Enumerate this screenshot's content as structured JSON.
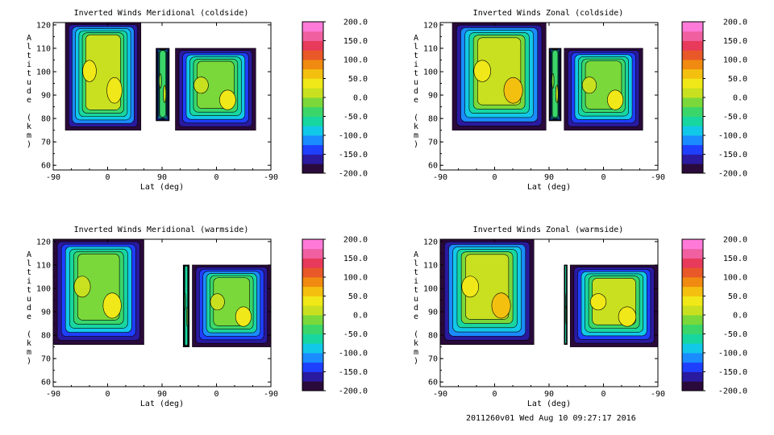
{
  "footer": "2011260v01 Wed Aug 10 09:27:17 2016",
  "chart_data": [
    {
      "type": "heatmap",
      "title": "Inverted Winds Meridional (coldside)",
      "xlabel": "Lat (deg)",
      "ylabel": "Altitude (km)",
      "xticks": [
        "-90",
        "0",
        "90",
        "0",
        "-90"
      ],
      "ylim": [
        58,
        121
      ],
      "yticks": [
        60,
        70,
        80,
        90,
        100,
        110,
        120
      ],
      "colorbar": {
        "range": [
          -200,
          200
        ],
        "ticks": [
          "200.0",
          "150.0",
          "100.0",
          "50.0",
          "0.0",
          "-50.0",
          "-100.0",
          "-150.0",
          "-200.0"
        ]
      },
      "filled_regions": [
        {
          "x_range": [
            -70,
            55
          ],
          "alt_range": [
            75,
            121
          ],
          "typical_value": 5
        },
        {
          "x_range": [
            80,
            102
          ],
          "alt_range": [
            79,
            110
          ],
          "typical_value": -40
        },
        {
          "x_range": [
            112,
            245
          ],
          "alt_range": [
            75,
            110
          ],
          "typical_value": -10
        }
      ]
    },
    {
      "type": "heatmap",
      "title": "Inverted Winds Zonal (coldside)",
      "xlabel": "Lat (deg)",
      "ylabel": "Altitude (km)",
      "xticks": [
        "-90",
        "0",
        "90",
        "0",
        "-90"
      ],
      "ylim": [
        58,
        121
      ],
      "yticks": [
        60,
        70,
        80,
        90,
        100,
        110,
        120
      ],
      "colorbar": {
        "range": [
          -200,
          200
        ],
        "ticks": [
          "200.0",
          "150.0",
          "100.0",
          "50.0",
          "0.0",
          "-50.0",
          "-100.0",
          "-150.0",
          "-200.0"
        ]
      },
      "filled_regions": [
        {
          "x_range": [
            -70,
            85
          ],
          "alt_range": [
            75,
            121
          ],
          "typical_value": 10
        },
        {
          "x_range": [
            90,
            110
          ],
          "alt_range": [
            79,
            110
          ],
          "typical_value": -40
        },
        {
          "x_range": [
            115,
            245
          ],
          "alt_range": [
            75,
            110
          ],
          "typical_value": -10
        }
      ]
    },
    {
      "type": "heatmap",
      "title": "Inverted Winds Meridional (warmside)",
      "xlabel": "Lat (deg)",
      "ylabel": "Altitude (km)",
      "xticks": [
        "-90",
        "0",
        "90",
        "0",
        "-90"
      ],
      "ylim": [
        58,
        121
      ],
      "yticks": [
        60,
        70,
        80,
        90,
        100,
        110,
        120
      ],
      "colorbar": {
        "range": [
          -200,
          200
        ],
        "ticks": [
          "200.0",
          "150.0",
          "100.0",
          "50.0",
          "0.0",
          "-50.0",
          "-100.0",
          "-150.0",
          "-200.0"
        ]
      },
      "filled_regions": [
        {
          "x_range": [
            -90,
            60
          ],
          "alt_range": [
            76,
            121
          ],
          "typical_value": -10
        },
        {
          "x_range": [
            125,
            135
          ],
          "alt_range": [
            75,
            110
          ],
          "typical_value": -60
        },
        {
          "x_range": [
            140,
            270
          ],
          "alt_range": [
            75,
            110
          ],
          "typical_value": -15
        }
      ]
    },
    {
      "type": "heatmap",
      "title": "Inverted Winds Zonal (warmside)",
      "xlabel": "Lat (deg)",
      "ylabel": "Altitude (km)",
      "xticks": [
        "-90",
        "0",
        "90",
        "0",
        "-90"
      ],
      "ylim": [
        58,
        121
      ],
      "yticks": [
        60,
        70,
        80,
        90,
        100,
        110,
        120
      ],
      "colorbar": {
        "range": [
          -200,
          200
        ],
        "ticks": [
          "200.0",
          "150.0",
          "100.0",
          "50.0",
          "0.0",
          "-50.0",
          "-100.0",
          "-150.0",
          "-200.0"
        ]
      },
      "filled_regions": [
        {
          "x_range": [
            -90,
            65
          ],
          "alt_range": [
            76,
            121
          ],
          "typical_value": 15
        },
        {
          "x_range": [
            115,
            120
          ],
          "alt_range": [
            76,
            110
          ],
          "typical_value": -60
        },
        {
          "x_range": [
            125,
            270
          ],
          "alt_range": [
            75,
            110
          ],
          "typical_value": 0
        }
      ]
    }
  ]
}
